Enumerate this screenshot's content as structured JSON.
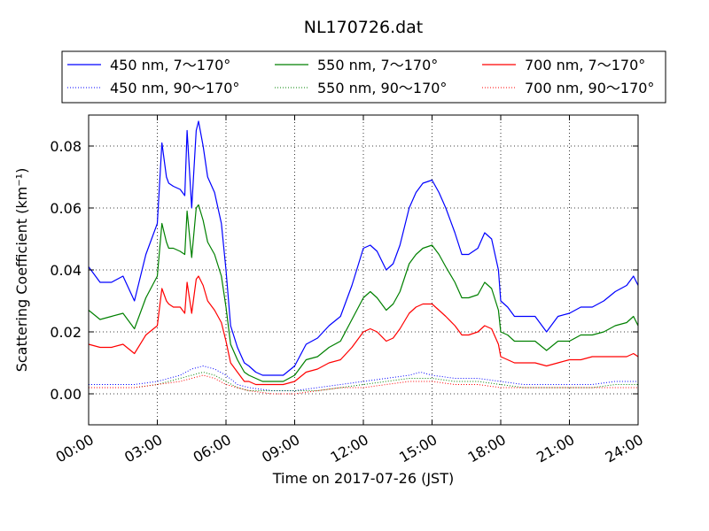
{
  "chart_data": {
    "type": "line",
    "title": "NL170726.dat",
    "xlabel": "Time on 2017-07-26 (JST)",
    "ylabel": "Scattering Coefficient (km⁻¹)",
    "xlim": [
      0,
      24
    ],
    "ylim": [
      -0.01,
      0.09
    ],
    "x_tick_values": [
      0,
      3,
      6,
      9,
      12,
      15,
      18,
      21,
      24
    ],
    "x_tick_labels": [
      "00:00",
      "03:00",
      "06:00",
      "09:00",
      "12:00",
      "15:00",
      "18:00",
      "21:00",
      "24:00"
    ],
    "y_tick_values": [
      0.0,
      0.02,
      0.04,
      0.06,
      0.08
    ],
    "y_tick_labels": [
      "0.00",
      "0.02",
      "0.04",
      "0.06",
      "0.08"
    ],
    "grid": true,
    "legend_position": "top-center-outside",
    "series": [
      {
        "name": "450 nm, 7～170°",
        "color": "#0000ff",
        "style": "solid",
        "x": [
          0,
          0.5,
          1,
          1.5,
          2,
          2.5,
          3,
          3.2,
          3.4,
          3.5,
          3.7,
          4,
          4.2,
          4.3,
          4.5,
          4.7,
          4.8,
          5,
          5.2,
          5.5,
          5.8,
          6,
          6.2,
          6.5,
          6.8,
          7,
          7.3,
          7.6,
          8,
          8.5,
          9,
          9.5,
          10,
          10.5,
          11,
          11.5,
          12,
          12.3,
          12.6,
          13,
          13.3,
          13.6,
          14,
          14.3,
          14.6,
          15,
          15.3,
          15.6,
          16,
          16.3,
          16.6,
          17,
          17.3,
          17.6,
          17.9,
          18,
          18.3,
          18.6,
          19,
          19.5,
          20,
          20.5,
          21,
          21.5,
          22,
          22.5,
          23,
          23.5,
          23.8,
          24
        ],
        "y": [
          0.041,
          0.036,
          0.036,
          0.038,
          0.03,
          0.045,
          0.055,
          0.081,
          0.07,
          0.068,
          0.067,
          0.066,
          0.064,
          0.085,
          0.06,
          0.085,
          0.088,
          0.08,
          0.07,
          0.065,
          0.055,
          0.04,
          0.022,
          0.015,
          0.01,
          0.009,
          0.007,
          0.006,
          0.006,
          0.006,
          0.009,
          0.016,
          0.018,
          0.022,
          0.025,
          0.035,
          0.047,
          0.048,
          0.046,
          0.04,
          0.042,
          0.048,
          0.06,
          0.065,
          0.068,
          0.069,
          0.065,
          0.06,
          0.052,
          0.045,
          0.045,
          0.047,
          0.052,
          0.05,
          0.04,
          0.03,
          0.028,
          0.025,
          0.025,
          0.025,
          0.02,
          0.025,
          0.026,
          0.028,
          0.028,
          0.03,
          0.033,
          0.035,
          0.038,
          0.035
        ]
      },
      {
        "name": "550 nm, 7～170°",
        "color": "#008000",
        "style": "solid",
        "x": [
          0,
          0.5,
          1,
          1.5,
          2,
          2.5,
          3,
          3.2,
          3.4,
          3.5,
          3.7,
          4,
          4.2,
          4.3,
          4.5,
          4.7,
          4.8,
          5,
          5.2,
          5.5,
          5.8,
          6,
          6.2,
          6.5,
          6.8,
          7,
          7.3,
          7.6,
          8,
          8.5,
          9,
          9.5,
          10,
          10.5,
          11,
          11.5,
          12,
          12.3,
          12.6,
          13,
          13.3,
          13.6,
          14,
          14.3,
          14.6,
          15,
          15.3,
          15.6,
          16,
          16.3,
          16.6,
          17,
          17.3,
          17.6,
          17.9,
          18,
          18.3,
          18.6,
          19,
          19.5,
          20,
          20.5,
          21,
          21.5,
          22,
          22.5,
          23,
          23.5,
          23.8,
          24
        ],
        "y": [
          0.027,
          0.024,
          0.025,
          0.026,
          0.021,
          0.031,
          0.038,
          0.055,
          0.049,
          0.047,
          0.047,
          0.046,
          0.045,
          0.059,
          0.044,
          0.06,
          0.061,
          0.056,
          0.049,
          0.045,
          0.038,
          0.028,
          0.016,
          0.011,
          0.007,
          0.006,
          0.005,
          0.004,
          0.004,
          0.004,
          0.006,
          0.011,
          0.012,
          0.015,
          0.017,
          0.024,
          0.031,
          0.033,
          0.031,
          0.027,
          0.029,
          0.033,
          0.042,
          0.045,
          0.047,
          0.048,
          0.045,
          0.041,
          0.036,
          0.031,
          0.031,
          0.032,
          0.036,
          0.034,
          0.027,
          0.02,
          0.019,
          0.017,
          0.017,
          0.017,
          0.014,
          0.017,
          0.017,
          0.019,
          0.019,
          0.02,
          0.022,
          0.023,
          0.025,
          0.022
        ]
      },
      {
        "name": "700 nm, 7～170°",
        "color": "#ff0000",
        "style": "solid",
        "x": [
          0,
          0.5,
          1,
          1.5,
          2,
          2.5,
          3,
          3.2,
          3.4,
          3.5,
          3.7,
          4,
          4.2,
          4.3,
          4.5,
          4.7,
          4.8,
          5,
          5.2,
          5.5,
          5.8,
          6,
          6.2,
          6.5,
          6.8,
          7,
          7.3,
          7.6,
          8,
          8.5,
          9,
          9.5,
          10,
          10.5,
          11,
          11.5,
          12,
          12.3,
          12.6,
          13,
          13.3,
          13.6,
          14,
          14.3,
          14.6,
          15,
          15.3,
          15.6,
          16,
          16.3,
          16.6,
          17,
          17.3,
          17.6,
          17.9,
          18,
          18.3,
          18.6,
          19,
          19.5,
          20,
          20.5,
          21,
          21.5,
          22,
          22.5,
          23,
          23.5,
          23.8,
          24
        ],
        "y": [
          0.016,
          0.015,
          0.015,
          0.016,
          0.013,
          0.019,
          0.022,
          0.034,
          0.03,
          0.029,
          0.028,
          0.028,
          0.026,
          0.036,
          0.026,
          0.037,
          0.038,
          0.035,
          0.03,
          0.027,
          0.023,
          0.017,
          0.01,
          0.007,
          0.004,
          0.004,
          0.003,
          0.003,
          0.003,
          0.003,
          0.004,
          0.007,
          0.008,
          0.01,
          0.011,
          0.015,
          0.02,
          0.021,
          0.02,
          0.017,
          0.018,
          0.021,
          0.026,
          0.028,
          0.029,
          0.029,
          0.027,
          0.025,
          0.022,
          0.019,
          0.019,
          0.02,
          0.022,
          0.021,
          0.016,
          0.012,
          0.011,
          0.01,
          0.01,
          0.01,
          0.009,
          0.01,
          0.011,
          0.011,
          0.012,
          0.012,
          0.012,
          0.012,
          0.013,
          0.012
        ]
      },
      {
        "name": "450 nm, 90～170°",
        "color": "#0000ff",
        "style": "dotted",
        "x": [
          0,
          1,
          2,
          3,
          4,
          4.5,
          5,
          5.5,
          6,
          6.5,
          7,
          8,
          9,
          10,
          11,
          12,
          13,
          14,
          14.5,
          15,
          16,
          17,
          18,
          19,
          20,
          21,
          22,
          23,
          24
        ],
        "y": [
          0.003,
          0.003,
          0.003,
          0.004,
          0.006,
          0.008,
          0.009,
          0.008,
          0.006,
          0.003,
          0.002,
          0.001,
          0.001,
          0.002,
          0.003,
          0.004,
          0.005,
          0.006,
          0.007,
          0.006,
          0.005,
          0.005,
          0.004,
          0.003,
          0.003,
          0.003,
          0.003,
          0.004,
          0.004
        ]
      },
      {
        "name": "550 nm, 90～170°",
        "color": "#008000",
        "style": "dotted",
        "x": [
          0,
          1,
          2,
          3,
          4,
          4.5,
          5,
          5.5,
          6,
          6.5,
          7,
          8,
          9,
          10,
          11,
          12,
          13,
          14,
          14.5,
          15,
          16,
          17,
          18,
          19,
          20,
          21,
          22,
          23,
          24
        ],
        "y": [
          0.002,
          0.002,
          0.002,
          0.003,
          0.005,
          0.006,
          0.007,
          0.006,
          0.004,
          0.002,
          0.001,
          0.001,
          0.001,
          0.001,
          0.002,
          0.003,
          0.004,
          0.005,
          0.005,
          0.005,
          0.004,
          0.004,
          0.003,
          0.002,
          0.002,
          0.002,
          0.002,
          0.003,
          0.003
        ]
      },
      {
        "name": "700 nm, 90～170°",
        "color": "#ff0000",
        "style": "dotted",
        "x": [
          0,
          1,
          2,
          3,
          4,
          4.5,
          5,
          5.5,
          6,
          6.5,
          7,
          8,
          9,
          10,
          11,
          12,
          13,
          14,
          14.5,
          15,
          16,
          17,
          18,
          19,
          20,
          21,
          22,
          23,
          24
        ],
        "y": [
          0.002,
          0.002,
          0.002,
          0.003,
          0.004,
          0.005,
          0.006,
          0.005,
          0.003,
          0.002,
          0.001,
          0.0,
          0.0,
          0.001,
          0.002,
          0.002,
          0.003,
          0.004,
          0.004,
          0.004,
          0.003,
          0.003,
          0.002,
          0.002,
          0.002,
          0.002,
          0.002,
          0.002,
          0.002
        ]
      }
    ]
  }
}
